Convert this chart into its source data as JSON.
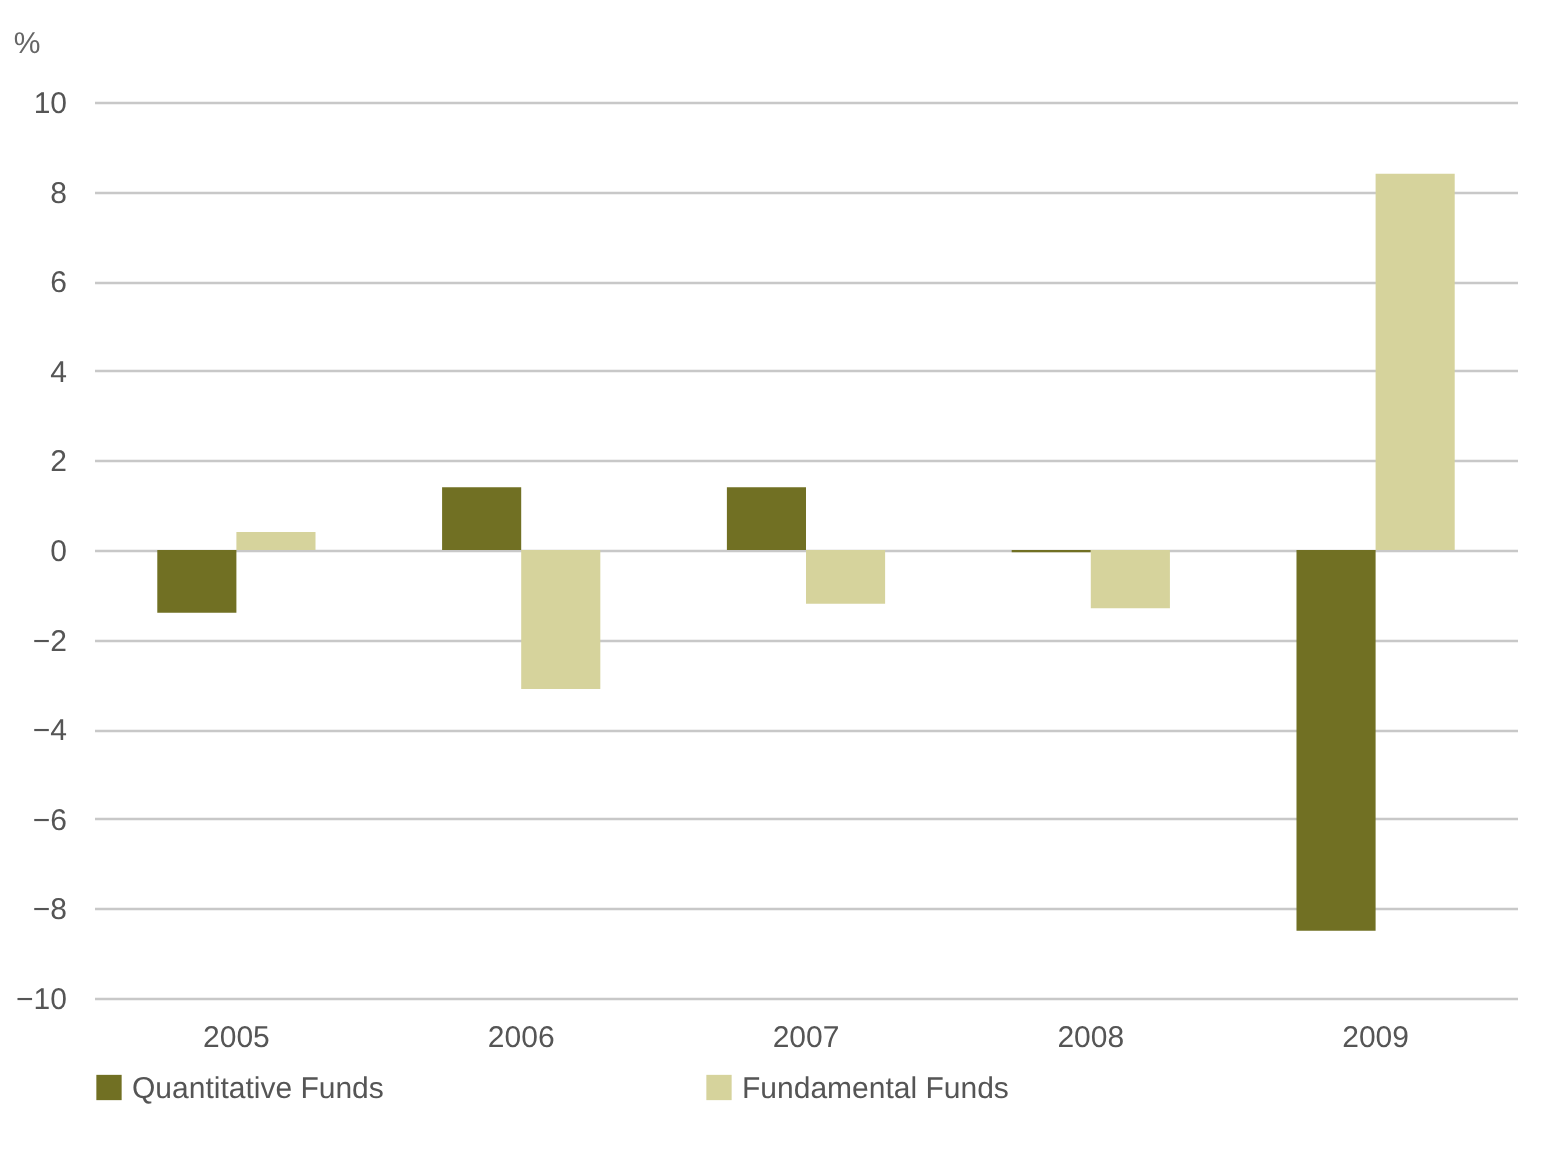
{
  "chart_data": {
    "type": "bar",
    "ylabel": "%",
    "categories": [
      "2005",
      "2006",
      "2007",
      "2008",
      "2009"
    ],
    "series": [
      {
        "name": "Quantitative Funds",
        "color": "#717023",
        "values": [
          -1.4,
          1.4,
          1.4,
          -0.05,
          -8.5
        ]
      },
      {
        "name": "Fundamental Funds",
        "color": "#d6d39c",
        "values": [
          0.4,
          -3.1,
          -1.2,
          -1.3,
          8.4
        ]
      }
    ],
    "ylim": [
      -10,
      10
    ],
    "yticks": [
      -10,
      -8,
      -6,
      -4,
      -2,
      0,
      2,
      4,
      6,
      8,
      10
    ],
    "grid": "y",
    "legend": "bottom"
  }
}
